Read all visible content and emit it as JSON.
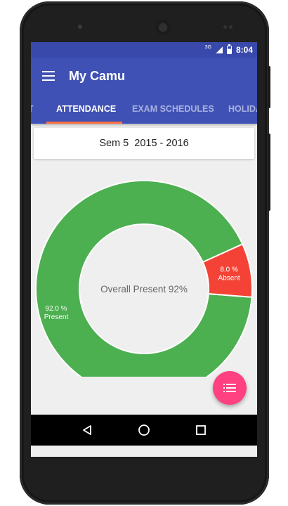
{
  "status_bar": {
    "network": "3G",
    "time": "8:04"
  },
  "app_bar": {
    "title": "My Camu"
  },
  "tabs": [
    {
      "label": "T"
    },
    {
      "label": "ATTENDANCE",
      "active": true
    },
    {
      "label": "EXAM SCHEDULES"
    },
    {
      "label": "HOLIDA"
    }
  ],
  "semester": {
    "label": "Sem 5  2015 - 2016"
  },
  "chart_data": {
    "type": "pie",
    "center_label": "Overall Present 92%",
    "slices": [
      {
        "name": "Present",
        "value": 92.0,
        "label": "92.0 %",
        "color": "#4caf50"
      },
      {
        "name": "Absent",
        "value": 8.0,
        "label": "8.0 %",
        "color": "#f44336"
      }
    ]
  },
  "fab": {
    "icon": "list-icon",
    "color": "#ff4081"
  },
  "nav_bar": {
    "icons": [
      "back-icon",
      "home-icon",
      "recents-icon"
    ]
  },
  "colors": {
    "primary": "#3f51b5",
    "primary_dark": "#3949ab",
    "accent": "#ff7043"
  }
}
